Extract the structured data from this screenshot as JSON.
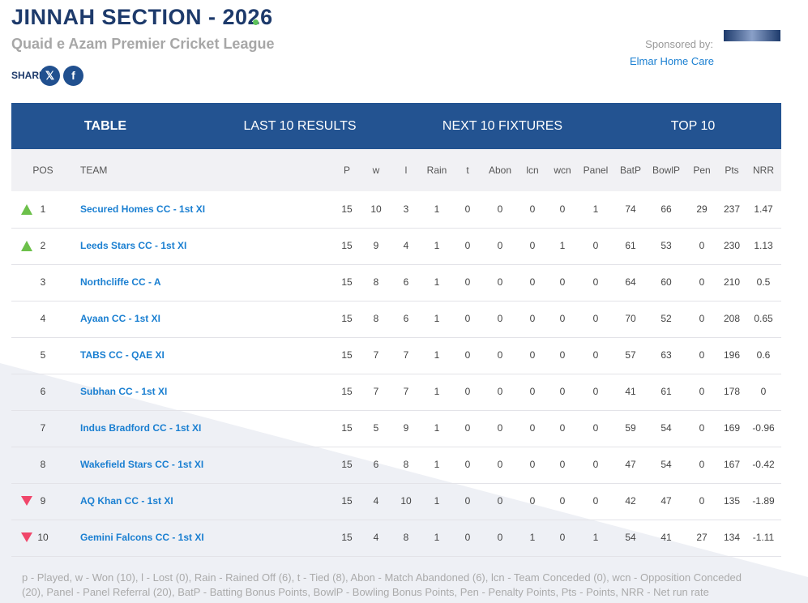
{
  "header": {
    "title": "JINNAH SECTION - 2026",
    "subtitle": "Quaid e Azam Premier Cricket League",
    "share": "SHARE",
    "sponsor_label": "Sponsored by:",
    "sponsor": "Elmar Home Care"
  },
  "tabs": [
    "TABLE",
    "LAST 10 RESULTS",
    "NEXT 10 FIXTURES",
    "TOP 10"
  ],
  "table": {
    "columns": [
      "POS",
      "TEAM",
      "P",
      "w",
      "l",
      "Rain",
      "t",
      "Abon",
      "lcn",
      "wcn",
      "Panel",
      "BatP",
      "BowlP",
      "Pen",
      "Pts",
      "NRR"
    ],
    "rows": [
      [
        1,
        "Secured Homes CC - 1st XI",
        15,
        10,
        3,
        1,
        0,
        0,
        0,
        0,
        1,
        74,
        66,
        29,
        237,
        1.47
      ],
      [
        2,
        "Leeds Stars CC - 1st XI",
        15,
        9,
        4,
        1,
        0,
        0,
        0,
        1,
        0,
        61,
        53,
        0,
        230,
        1.13
      ],
      [
        3,
        "Northcliffe CC - A",
        15,
        8,
        6,
        1,
        0,
        0,
        0,
        0,
        0,
        64,
        60,
        0,
        210,
        0.5
      ],
      [
        4,
        "Ayaan CC - 1st XI",
        15,
        8,
        6,
        1,
        0,
        0,
        0,
        0,
        0,
        70,
        52,
        0,
        208,
        0.65
      ],
      [
        5,
        "TABS CC - QAE XI",
        15,
        7,
        7,
        1,
        0,
        0,
        0,
        0,
        0,
        57,
        63,
        0,
        196,
        0.6
      ],
      [
        6,
        "Subhan CC - 1st XI",
        15,
        7,
        7,
        1,
        0,
        0,
        0,
        0,
        0,
        41,
        61,
        0,
        178,
        0
      ],
      [
        7,
        "Indus Bradford CC - 1st XI",
        15,
        5,
        9,
        1,
        0,
        0,
        0,
        0,
        0,
        59,
        54,
        0,
        169,
        -0.96
      ],
      [
        8,
        "Wakefield Stars CC - 1st XI",
        15,
        6,
        8,
        1,
        0,
        0,
        0,
        0,
        0,
        47,
        54,
        0,
        167,
        -0.42
      ],
      [
        9,
        "AQ Khan CC - 1st XI",
        15,
        4,
        10,
        1,
        0,
        0,
        0,
        0,
        0,
        42,
        47,
        0,
        135,
        -1.89
      ],
      [
        10,
        "Gemini Falcons CC - 1st XI",
        15,
        4,
        8,
        1,
        0,
        0,
        1,
        0,
        1,
        54,
        41,
        27,
        134,
        -1.11
      ]
    ]
  },
  "footer": "p - Played, w - Won (10), l - Lost (0), Rain - Rained Off (6), t - Tied (8), Abon - Match Abandoned (6), lcn - Team Conceded (0), wcn - Opposition Conceded (20), Panel - Panel Referral (20), BatP - Batting Bonus Points, BowlP - Bowling Bonus Points, Pen - Penalty Points, Pts - Points, NRR - Net run rate"
}
